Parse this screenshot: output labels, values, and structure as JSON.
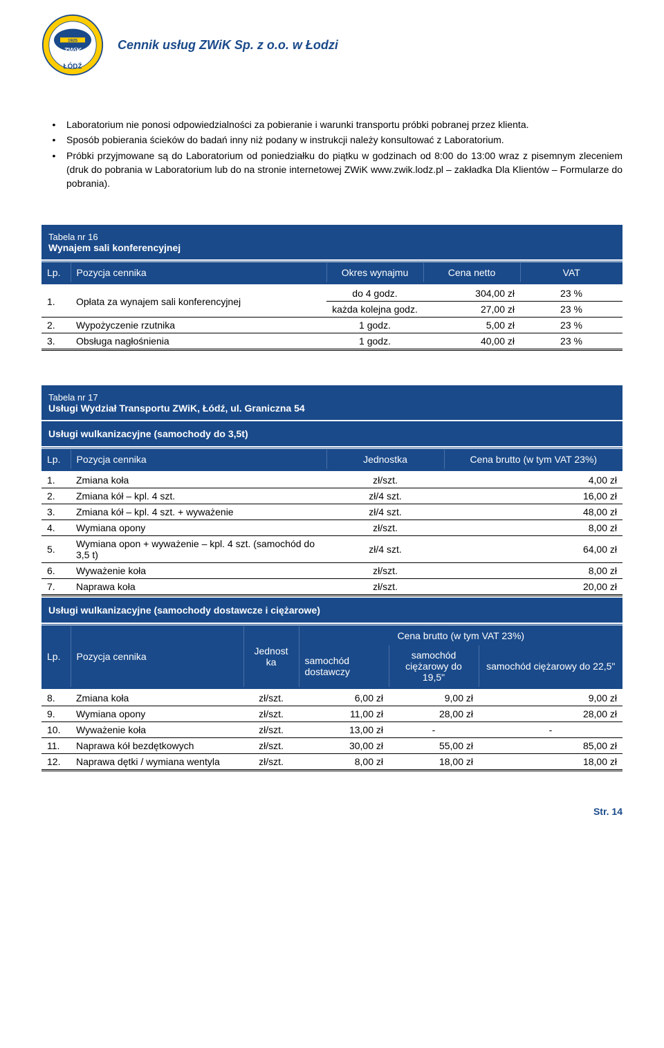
{
  "header": {
    "title": "Cennik usług ZWiK Sp. z o.o. w Łodzi"
  },
  "bullets": [
    "Laboratorium nie ponosi odpowiedzialności za pobieranie i warunki transportu próbki pobranej przez klienta.",
    "Sposób pobierania ścieków do badań inny niż podany w instrukcji należy konsultować z Laboratorium.",
    "Próbki przyjmowane są do Laboratorium od poniedziałku do piątku w godzinach od 8:00 do 13:00 wraz z pisemnym zleceniem (druk do pobrania w Laboratorium lub do na stronie internetowej ZWiK www.zwik.lodz.pl – zakładka Dla Klientów – Formularze do pobrania)."
  ],
  "table16": {
    "tabela_nr": "Tabela nr 16",
    "title": "Wynajem sali konferencyjnej",
    "columns": {
      "lp": "Lp.",
      "pozycja": "Pozycja cennika",
      "okres": "Okres wynajmu",
      "cena": "Cena netto",
      "vat": "VAT"
    },
    "row1a": {
      "lp": "1.",
      "name": "Opłata za wynajem sali konferencyjnej",
      "unit": "do 4 godz.",
      "price": "304,00 zł",
      "vat": "23 %"
    },
    "row1b": {
      "unit": "każda kolejna godz.",
      "price": "27,00 zł",
      "vat": "23 %"
    },
    "row2": {
      "lp": "2.",
      "name": "Wypożyczenie rzutnika",
      "unit": "1 godz.",
      "price": "5,00 zł",
      "vat": "23 %"
    },
    "row3": {
      "lp": "3.",
      "name": "Obsługa nagłośnienia",
      "unit": "1 godz.",
      "price": "40,00 zł",
      "vat": "23 %"
    }
  },
  "table17": {
    "tabela_nr": "Tabela nr 17",
    "title": "Usługi Wydział Transportu ZWiK, Łódź,  ul. Graniczna 54",
    "sub1": "Usługi wulkanizacyjne (samochody do 3,5t)",
    "columns1": {
      "lp": "Lp.",
      "pozycja": "Pozycja cennika",
      "jednostka": "Jednostka",
      "cena": "Cena brutto (w tym VAT 23%)"
    },
    "rows1": [
      {
        "lp": "1.",
        "name": "Zmiana koła",
        "unit": "zł/szt.",
        "price": "4,00 zł"
      },
      {
        "lp": "2.",
        "name": "Zmiana kół – kpl. 4 szt.",
        "unit": "zł/4 szt.",
        "price": "16,00 zł"
      },
      {
        "lp": "3.",
        "name": "Zmiana kół – kpl. 4 szt. + wyważenie",
        "unit": "zł/4 szt.",
        "price": "48,00 zł"
      },
      {
        "lp": "4.",
        "name": "Wymiana opony",
        "unit": "zł/szt.",
        "price": "8,00 zł"
      },
      {
        "lp": "5.",
        "name": "Wymiana opon + wyważenie – kpl. 4 szt. (samochód do 3,5 t)",
        "unit": "zł/4 szt.",
        "price": "64,00 zł"
      },
      {
        "lp": "6.",
        "name": "Wyważenie koła",
        "unit": "zł/szt.",
        "price": "8,00 zł"
      },
      {
        "lp": "7.",
        "name": "Naprawa koła",
        "unit": "zł/szt.",
        "price": "20,00 zł"
      }
    ],
    "sub2": "Usługi wulkanizacyjne (samochody dostawcze i ciężarowe)",
    "columns2": {
      "lp": "Lp.",
      "pozycja": "Pozycja cennika",
      "jednostka": "Jednost ka",
      "cena_top": "Cena brutto (w tym VAT 23%)",
      "c1": "samochód dostawczy",
      "c2": "samochód ciężarowy do 19,5\"",
      "c3": "samochód ciężarowy do 22,5\""
    },
    "rows2": [
      {
        "lp": "8.",
        "name": "Zmiana koła",
        "unit": "zł/szt.",
        "p1": "6,00 zł",
        "p2": "9,00 zł",
        "p3": "9,00 zł"
      },
      {
        "lp": "9.",
        "name": "Wymiana opony",
        "unit": "zł/szt.",
        "p1": "11,00 zł",
        "p2": "28,00 zł",
        "p3": "28,00 zł"
      },
      {
        "lp": "10.",
        "name": "Wyważenie koła",
        "unit": "zł/szt.",
        "p1": "13,00 zł",
        "p2": "-",
        "p3": "-"
      },
      {
        "lp": "11.",
        "name": "Naprawa kół bezdętkowych",
        "unit": "zł/szt.",
        "p1": "30,00 zł",
        "p2": "55,00 zł",
        "p3": "85,00 zł"
      },
      {
        "lp": "12.",
        "name": "Naprawa dętki / wymiana wentyla",
        "unit": "zł/szt.",
        "p1": "8,00 zł",
        "p2": "18,00 zł",
        "p3": "18,00 zł"
      }
    ]
  },
  "footer": {
    "page": "Str. 14"
  },
  "colors": {
    "primary": "#1a4a8a",
    "yellow": "#ffcc00",
    "text": "#000000",
    "white": "#ffffff"
  }
}
